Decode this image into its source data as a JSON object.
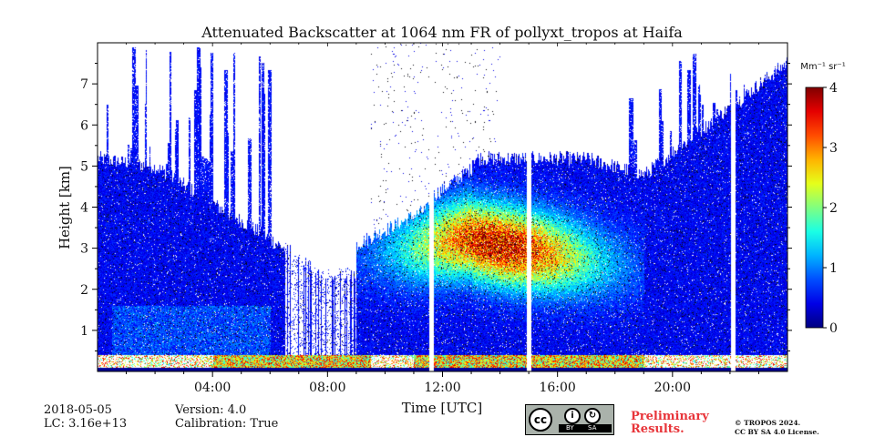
{
  "chart_data": {
    "type": "heatmap",
    "title": "Attenuated Backscatter at 1064 nm FR of pollyxt_tropos at Haifa",
    "xlabel": "Time [UTC]",
    "ylabel": "Height [km]",
    "xlim_hours": [
      0,
      24
    ],
    "ylim_km": [
      0,
      8
    ],
    "x_ticks": [
      {
        "hour": 4,
        "label": "04:00"
      },
      {
        "hour": 8,
        "label": "08:00"
      },
      {
        "hour": 12,
        "label": "12:00"
      },
      {
        "hour": 16,
        "label": "16:00"
      },
      {
        "hour": 20,
        "label": "20:00"
      }
    ],
    "y_ticks": [
      {
        "km": 1,
        "label": "1"
      },
      {
        "km": 2,
        "label": "2"
      },
      {
        "km": 3,
        "label": "3"
      },
      {
        "km": 4,
        "label": "4"
      },
      {
        "km": 5,
        "label": "5"
      },
      {
        "km": 6,
        "label": "6"
      },
      {
        "km": 7,
        "label": "7"
      }
    ],
    "colorbar": {
      "unit": "Mm⁻¹ sr⁻¹",
      "range": [
        0,
        4
      ],
      "ticks": [
        "0",
        "1",
        "2",
        "3",
        "4"
      ],
      "colormap": "jet"
    },
    "grid": false,
    "data_gaps_hours": [
      11.6,
      15.0,
      22.1
    ],
    "aerosol_layer": {
      "start_hour": 9,
      "end_hour": 19,
      "base_km": 1.8,
      "top_km": 5.2,
      "peak_value": 3.5
    },
    "boundary_layer_km": 0.4
  },
  "footer": {
    "date": "2018-05-05",
    "lc": "LC: 3.16e+13",
    "version": "Version: 4.0",
    "calibration": "Calibration: True",
    "cc_symbol": "cc",
    "cc_by": "BY",
    "cc_sa": "SA",
    "preliminary_line1": "Preliminary",
    "preliminary_line2": "Results.",
    "copyright_line1": "© TROPOS 2024.",
    "copyright_line2": "CC BY SA 4.0 License."
  },
  "colors": {
    "low": "#0a3fd0",
    "high": "#e0140e",
    "prelim_text": "#e8353a"
  }
}
